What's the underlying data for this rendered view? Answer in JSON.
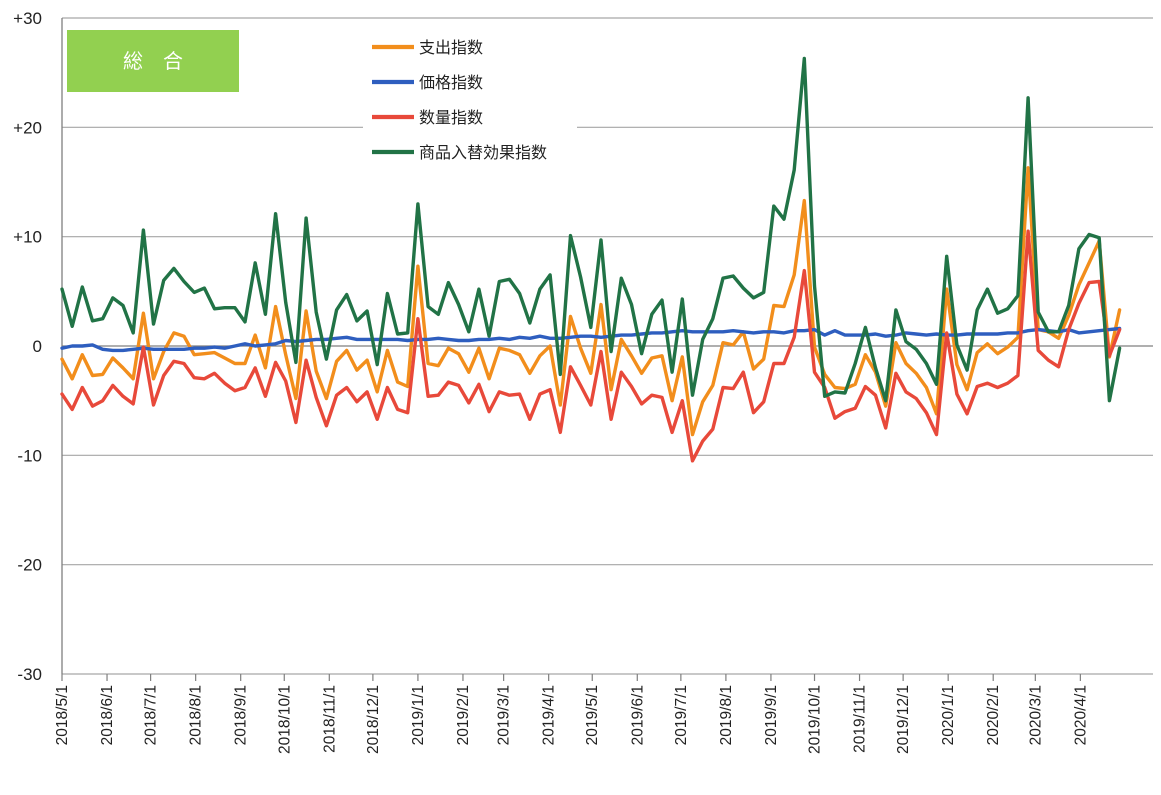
{
  "badge": {
    "label": "総　合",
    "color": "#92D050"
  },
  "chart_data": {
    "type": "line",
    "title": "",
    "xlabel": "",
    "ylabel": "",
    "ylim": [
      -30,
      30
    ],
    "y_ticks": [
      30,
      20,
      10,
      0,
      -10,
      -20,
      -30
    ],
    "y_tick_labels": [
      "+30",
      "+20",
      "+10",
      "0",
      "-10",
      "-20",
      "-30"
    ],
    "x_tick_labels": [
      "2018/5/1",
      "2018/6/1",
      "2018/7/1",
      "2018/8/1",
      "2018/9/1",
      "2018/10/1",
      "2018/11/1",
      "2018/12/1",
      "2019/1/1",
      "2019/2/1",
      "2019/3/1",
      "2019/4/1",
      "2019/5/1",
      "2019/6/1",
      "2019/7/1",
      "2019/8/1",
      "2019/9/1",
      "2019/10/1",
      "2019/11/1",
      "2019/12/1",
      "2020/1/1",
      "2020/2/1",
      "2020/3/1",
      "2020/4/1"
    ],
    "x_range": [
      "2018-05-01",
      "2020-05-21"
    ],
    "frequency": "weekly",
    "grid": "horizontal",
    "legend_position": "top-center",
    "series": [
      {
        "name": "支出指数",
        "color": "#F28E1C",
        "values": [
          -1.2,
          -3.0,
          -0.8,
          -2.7,
          -2.6,
          -1.1,
          -2.0,
          -3.0,
          3.0,
          -3.0,
          -0.5,
          1.2,
          0.9,
          -0.8,
          -0.7,
          -0.6,
          -1.1,
          -1.6,
          -1.6,
          1.0,
          -2.0,
          3.6,
          -0.8,
          -4.8,
          3.2,
          -2.3,
          -4.8,
          -1.4,
          -0.4,
          -2.2,
          -1.3,
          -4.2,
          -0.4,
          -3.3,
          -3.7,
          7.3,
          -1.6,
          -1.8,
          -0.2,
          -0.7,
          -2.4,
          -0.2,
          -3.0,
          -0.2,
          -0.4,
          -0.8,
          -2.5,
          -0.9,
          0.0,
          -5.4,
          2.7,
          -0.2,
          -2.5,
          3.8,
          -4.0,
          0.6,
          -0.9,
          -2.5,
          -1.1,
          -0.9,
          -5.0,
          -1.0,
          -8.1,
          -5.1,
          -3.6,
          0.3,
          0.1,
          1.3,
          -2.1,
          -1.2,
          3.7,
          3.6,
          6.5,
          13.3,
          -0.1,
          -2.6,
          -3.8,
          -3.9,
          -3.5,
          -0.8,
          -2.4,
          -5.5,
          0.3,
          -1.6,
          -2.5,
          -3.8,
          -6.2,
          5.2,
          -1.7,
          -4.0,
          -0.6,
          0.2,
          -0.7,
          -0.1,
          0.8,
          16.3,
          1.5,
          1.3,
          0.7,
          2.8,
          5.6,
          7.6,
          9.6,
          -1.0,
          3.3
        ]
      },
      {
        "name": "価格指数",
        "color": "#2E5EBF",
        "values": [
          -0.2,
          0.0,
          0.0,
          0.1,
          -0.3,
          -0.4,
          -0.4,
          -0.3,
          -0.2,
          -0.3,
          -0.3,
          -0.3,
          -0.3,
          -0.2,
          -0.2,
          -0.1,
          -0.2,
          0.0,
          0.2,
          0.0,
          0.1,
          0.2,
          0.5,
          0.4,
          0.5,
          0.6,
          0.6,
          0.7,
          0.8,
          0.6,
          0.6,
          0.6,
          0.6,
          0.6,
          0.5,
          0.6,
          0.6,
          0.7,
          0.6,
          0.5,
          0.5,
          0.6,
          0.6,
          0.7,
          0.6,
          0.8,
          0.7,
          0.9,
          0.7,
          0.7,
          0.8,
          0.9,
          0.9,
          0.8,
          0.9,
          1.0,
          1.0,
          1.1,
          1.2,
          1.2,
          1.3,
          1.4,
          1.3,
          1.3,
          1.3,
          1.3,
          1.4,
          1.3,
          1.2,
          1.3,
          1.3,
          1.2,
          1.4,
          1.4,
          1.5,
          1.0,
          1.4,
          1.0,
          1.0,
          1.0,
          1.1,
          0.9,
          1.0,
          1.2,
          1.1,
          1.0,
          1.1,
          1.0,
          1.0,
          1.1,
          1.1,
          1.1,
          1.1,
          1.2,
          1.2,
          1.4,
          1.5,
          1.4,
          1.3,
          1.5,
          1.2,
          1.3,
          1.4,
          1.5,
          1.6
        ]
      },
      {
        "name": "数量指数",
        "color": "#E8493A",
        "values": [
          -4.4,
          -5.8,
          -3.8,
          -5.5,
          -5.0,
          -3.6,
          -4.6,
          -5.3,
          -0.1,
          -5.4,
          -2.7,
          -1.4,
          -1.6,
          -2.9,
          -3.0,
          -2.5,
          -3.4,
          -4.1,
          -3.8,
          -2.0,
          -4.6,
          -1.5,
          -3.2,
          -7.0,
          -1.3,
          -4.7,
          -7.3,
          -4.5,
          -3.8,
          -5.1,
          -4.2,
          -6.7,
          -3.8,
          -5.8,
          -6.1,
          2.5,
          -4.6,
          -4.5,
          -3.3,
          -3.6,
          -5.2,
          -3.5,
          -6.0,
          -4.2,
          -4.5,
          -4.4,
          -6.7,
          -4.4,
          -4.0,
          -7.9,
          -1.9,
          -3.6,
          -5.4,
          -0.5,
          -6.7,
          -2.4,
          -3.7,
          -5.3,
          -4.5,
          -4.7,
          -7.9,
          -5.0,
          -10.5,
          -8.7,
          -7.6,
          -3.8,
          -3.9,
          -2.4,
          -6.1,
          -5.1,
          -1.6,
          -1.6,
          0.8,
          6.9,
          -2.4,
          -3.8,
          -6.6,
          -6.0,
          -5.7,
          -3.7,
          -4.5,
          -7.5,
          -2.5,
          -4.2,
          -4.8,
          -6.1,
          -8.1,
          1.2,
          -4.4,
          -6.2,
          -3.7,
          -3.4,
          -3.8,
          -3.4,
          -2.7,
          10.5,
          -0.4,
          -1.3,
          -1.9,
          1.5,
          3.9,
          5.8,
          5.9,
          -0.9,
          1.5
        ]
      },
      {
        "name": "商品入替効果指数",
        "color": "#217346",
        "values": [
          5.2,
          1.8,
          5.4,
          2.3,
          2.5,
          4.4,
          3.7,
          1.2,
          10.6,
          2.0,
          6.0,
          7.1,
          5.9,
          4.9,
          5.3,
          3.4,
          3.5,
          3.5,
          2.2,
          7.6,
          2.9,
          12.1,
          4.0,
          -1.5,
          11.7,
          3.1,
          -1.2,
          3.3,
          4.7,
          2.3,
          3.2,
          -1.7,
          4.8,
          1.1,
          1.2,
          13.0,
          3.6,
          2.9,
          5.8,
          3.8,
          1.3,
          5.2,
          0.9,
          5.9,
          6.1,
          4.8,
          2.1,
          5.2,
          6.5,
          -2.6,
          10.1,
          6.3,
          1.7,
          9.7,
          -0.5,
          6.2,
          3.8,
          -0.7,
          2.9,
          4.2,
          -2.4,
          4.3,
          -4.5,
          0.6,
          2.5,
          6.2,
          6.4,
          5.3,
          4.4,
          4.9,
          12.8,
          11.6,
          16.1,
          26.3,
          5.5,
          -4.6,
          -4.2,
          -4.3,
          -1.6,
          1.7,
          -2.0,
          -5.0,
          3.3,
          0.4,
          -0.3,
          -1.6,
          -3.5,
          8.2,
          0.1,
          -2.2,
          3.3,
          5.2,
          3.0,
          3.4,
          4.6,
          22.7,
          3.1,
          1.3,
          1.3,
          3.7,
          8.9,
          10.2,
          9.9,
          -5.0,
          -0.2
        ]
      }
    ]
  }
}
